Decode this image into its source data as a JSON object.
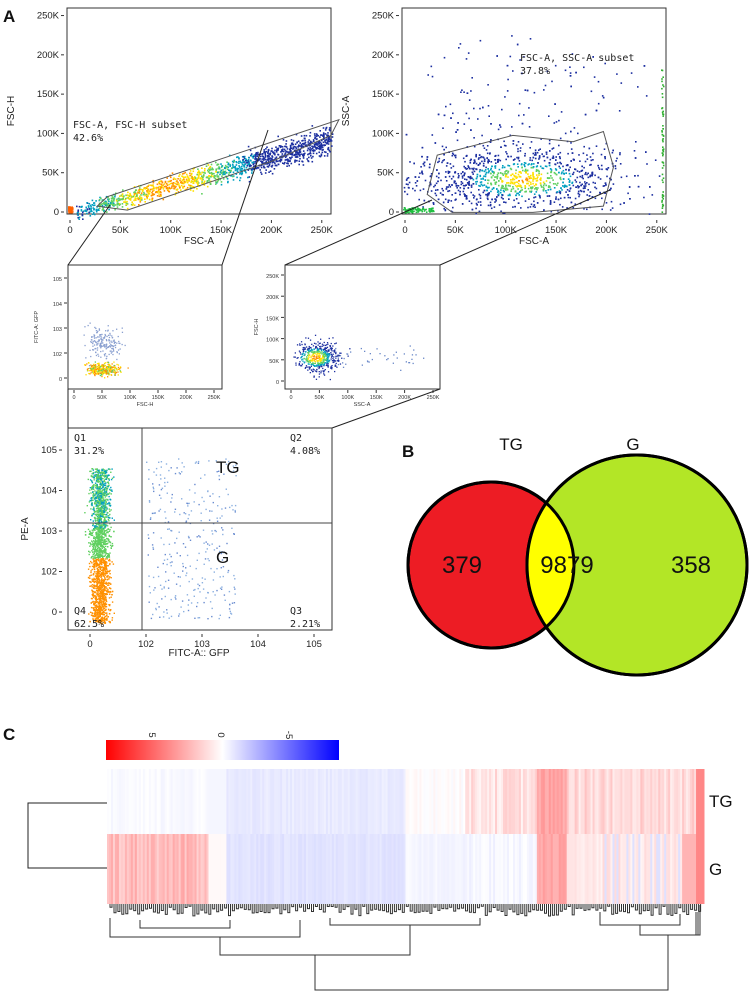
{
  "figure": {
    "panel_a": "A",
    "panel_b": "B",
    "panel_c": "C"
  },
  "chart_data": [
    {
      "type": "scatter",
      "id": "plot1",
      "xlabel": "FSC-A",
      "ylabel": "FSC-H",
      "xticks": [
        "0",
        "50K",
        "100K",
        "150K",
        "200K",
        "250K"
      ],
      "yticks": [
        "0",
        "50K",
        "100K",
        "150K",
        "200K",
        "250K"
      ],
      "xlim": [
        0,
        262144
      ],
      "ylim": [
        0,
        262144
      ],
      "gate_label": "FSC-A, FSC-H subset",
      "gate_pct": "42.6%",
      "gate_polygon": [
        [
          40000,
          22000
        ],
        [
          270000,
          120000
        ],
        [
          262000,
          100000
        ],
        [
          205000,
          68000
        ],
        [
          60000,
          5000
        ],
        [
          30000,
          10000
        ]
      ]
    },
    {
      "type": "scatter",
      "id": "plot2",
      "xlabel": "FSC-A",
      "ylabel": "SSC-A",
      "xticks": [
        "0",
        "50K",
        "100K",
        "150K",
        "200K",
        "250K"
      ],
      "yticks": [
        "0",
        "50K",
        "100K",
        "150K",
        "200K",
        "250K"
      ],
      "xlim": [
        0,
        262144
      ],
      "ylim": [
        0,
        262144
      ],
      "gate_label": "FSC-A, SSC-A subset",
      "gate_pct": "37.8%",
      "gate_polygon": [
        [
          25000,
          25000
        ],
        [
          35000,
          75000
        ],
        [
          110000,
          100000
        ],
        [
          170000,
          92000
        ],
        [
          200000,
          105000
        ],
        [
          210000,
          60000
        ],
        [
          200000,
          10000
        ],
        [
          130000,
          2000
        ],
        [
          50000,
          2000
        ]
      ]
    },
    {
      "type": "scatter",
      "id": "plot3",
      "xlabel": "FSC-H",
      "ylabel": "FITC-A: GFP",
      "xticks": [
        "0",
        "50K",
        "100K",
        "150K",
        "200K",
        "250K"
      ],
      "yticks": [
        "0",
        "10^2",
        "10^3",
        "10^4",
        "10^5"
      ]
    },
    {
      "type": "scatter",
      "id": "plot4",
      "xlabel": "SSC-A",
      "ylabel": "FSC-H",
      "xticks": [
        "0",
        "50K",
        "100K",
        "150K",
        "200K",
        "250K"
      ],
      "yticks": [
        "0",
        "50K",
        "100K",
        "150K",
        "200K",
        "250K"
      ]
    },
    {
      "type": "scatter",
      "id": "quadrant",
      "xlabel": "FITC-A:: GFP",
      "ylabel": "PE-A",
      "xticks": [
        "0",
        "10^2",
        "10^3",
        "10^4",
        "10^5"
      ],
      "yticks": [
        "0",
        "10^2",
        "10^3",
        "10^4",
        "10^5"
      ],
      "quadrants": [
        {
          "name": "Q1",
          "pct": "31.2%"
        },
        {
          "name": "Q2",
          "pct": "4.08%"
        },
        {
          "name": "Q3",
          "pct": "2.21%"
        },
        {
          "name": "Q4",
          "pct": "62.5%"
        }
      ],
      "annotations": [
        "TG",
        "G"
      ]
    },
    {
      "type": "venn",
      "id": "venn",
      "sets": [
        {
          "name": "TG",
          "only": 379,
          "color": "#ed1c24"
        },
        {
          "name": "G",
          "only": 358,
          "color": "#b3e626"
        }
      ],
      "intersection": 9879,
      "intersection_color": "#ffff00"
    },
    {
      "type": "heatmap",
      "id": "heatmap",
      "rows": [
        "TG",
        "G"
      ],
      "color_scale": {
        "ticks": [
          "5",
          "0",
          "-5"
        ],
        "low_color": "#ff0000",
        "mid_color": "#ffffff",
        "high_color": "#0000ff"
      },
      "dendrogram": "hierarchical clustering of genes and samples"
    }
  ]
}
